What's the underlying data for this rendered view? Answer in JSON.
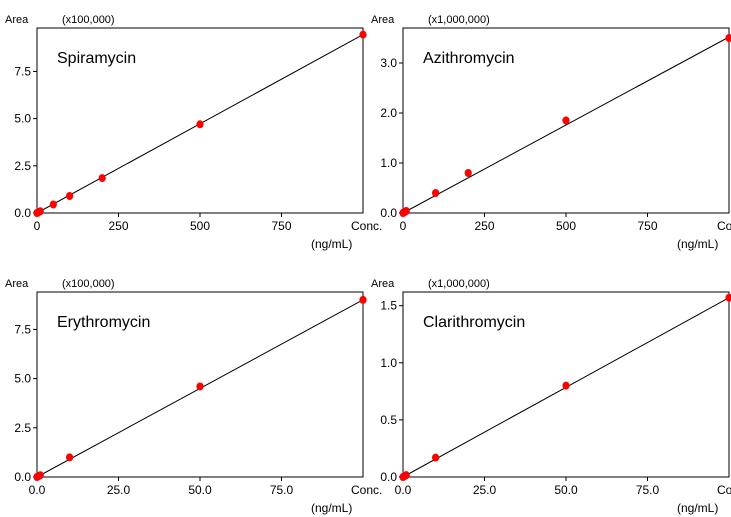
{
  "chart_data": [
    {
      "type": "scatter",
      "title": "Spiramycin",
      "ylabel": "Area",
      "y_multiplier": "(x100,000)",
      "xlabel": "Conc.",
      "x_unit": "(ng/mL)",
      "xlim": [
        0,
        1000
      ],
      "ylim": [
        0,
        9.8
      ],
      "x_ticks": [
        0,
        250,
        500,
        750
      ],
      "x_tick_labels": [
        "0",
        "250",
        "500",
        "750"
      ],
      "y_ticks": [
        0,
        2.5,
        5.0,
        7.5
      ],
      "y_tick_labels": [
        "0.0",
        "2.5",
        "5.0",
        "7.5"
      ],
      "series": [
        {
          "x": [
            0,
            2,
            5,
            10,
            50,
            100,
            200,
            500,
            1000
          ],
          "y": [
            0,
            0.02,
            0.05,
            0.09,
            0.45,
            0.9,
            1.85,
            4.7,
            9.45
          ]
        }
      ],
      "fit_line": {
        "x": [
          0,
          1000
        ],
        "y": [
          0,
          9.45
        ]
      },
      "marker_color": "#ff0000",
      "line_color": "#000000",
      "grid": false
    },
    {
      "type": "scatter",
      "title": "Azithromycin",
      "ylabel": "Area",
      "y_multiplier": "(x1,000,000)",
      "xlabel": "Conc.",
      "x_unit": "(ng/mL)",
      "xlim": [
        0,
        1000
      ],
      "ylim": [
        0,
        3.7
      ],
      "x_ticks": [
        0,
        250,
        500,
        750
      ],
      "x_tick_labels": [
        "0",
        "250",
        "500",
        "750"
      ],
      "y_ticks": [
        0,
        1.0,
        2.0,
        3.0
      ],
      "y_tick_labels": [
        "0.0",
        "1.0",
        "2.0",
        "3.0"
      ],
      "series": [
        {
          "x": [
            0,
            2,
            5,
            10,
            100,
            200,
            500,
            1000
          ],
          "y": [
            0,
            0.01,
            0.02,
            0.04,
            0.4,
            0.8,
            1.85,
            3.5
          ]
        }
      ],
      "fit_line": {
        "x": [
          0,
          1000
        ],
        "y": [
          0,
          3.52
        ]
      },
      "marker_color": "#ff0000",
      "line_color": "#000000",
      "grid": false
    },
    {
      "type": "scatter",
      "title": "Erythromycin",
      "ylabel": "Area",
      "y_multiplier": "(x100,000)",
      "xlabel": "Conc.",
      "x_unit": "(ng/mL)",
      "xlim": [
        0,
        100
      ],
      "ylim": [
        0,
        9.4
      ],
      "x_ticks": [
        0,
        25,
        50,
        75
      ],
      "x_tick_labels": [
        "0.0",
        "25.0",
        "50.0",
        "75.0"
      ],
      "y_ticks": [
        0,
        2.5,
        5.0,
        7.5
      ],
      "y_tick_labels": [
        "0.0",
        "2.5",
        "5.0",
        "7.5"
      ],
      "series": [
        {
          "x": [
            0,
            0.2,
            0.5,
            1,
            10,
            50,
            100
          ],
          "y": [
            0,
            0.02,
            0.05,
            0.09,
            1.0,
            4.6,
            9.0
          ]
        }
      ],
      "fit_line": {
        "x": [
          0,
          100
        ],
        "y": [
          0,
          9.0
        ]
      },
      "marker_color": "#ff0000",
      "line_color": "#000000",
      "grid": false
    },
    {
      "type": "scatter",
      "title": "Clarithromycin",
      "ylabel": "Area",
      "y_multiplier": "(x1,000,000)",
      "xlabel": "Conc.",
      "x_unit": "(ng/mL)",
      "xlim": [
        0,
        100
      ],
      "ylim": [
        0,
        1.62
      ],
      "x_ticks": [
        0,
        25,
        50,
        75
      ],
      "x_tick_labels": [
        "0.0",
        "25.0",
        "50.0",
        "75.0"
      ],
      "y_ticks": [
        0,
        0.5,
        1.0,
        1.5
      ],
      "y_tick_labels": [
        "0.0",
        "0.5",
        "1.0",
        "1.5"
      ],
      "series": [
        {
          "x": [
            0,
            0.2,
            0.5,
            1,
            10,
            50,
            100
          ],
          "y": [
            0,
            0.003,
            0.008,
            0.016,
            0.17,
            0.8,
            1.57
          ]
        }
      ],
      "fit_line": {
        "x": [
          0,
          100
        ],
        "y": [
          0,
          1.57
        ]
      },
      "marker_color": "#ff0000",
      "line_color": "#000000",
      "grid": false
    }
  ]
}
